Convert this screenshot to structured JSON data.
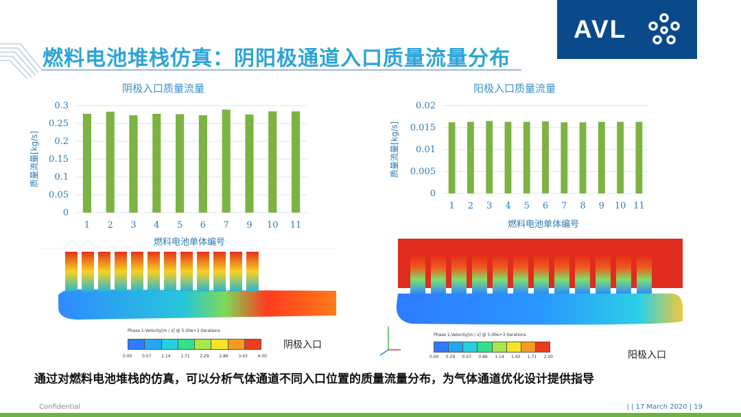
{
  "header": {
    "title": "燃料电池堆栈仿真：阴阳极通道入口质量流量分布",
    "logo_text": "AVL"
  },
  "chart_data": [
    {
      "type": "bar",
      "title": "阴极入口质量流量",
      "xlabel": "燃料电池单体编号",
      "ylabel": "质量流量[kg/s]",
      "categories": [
        "1",
        "2",
        "3",
        "4",
        "5",
        "6",
        "7",
        "9",
        "10",
        "11"
      ],
      "values": [
        0.277,
        0.283,
        0.273,
        0.277,
        0.276,
        0.273,
        0.289,
        0.275,
        0.284,
        0.284
      ],
      "yticks": [
        "0",
        "0.05",
        "0.1",
        "0.15",
        "0.2",
        "0.25",
        "0.3"
      ],
      "ylim": [
        0,
        0.3
      ],
      "grid": true,
      "color": "#7cb342"
    },
    {
      "type": "bar",
      "title": "阳极入口质量流量",
      "xlabel": "燃料电池单体编号",
      "ylabel": "质量流量[kg/s]",
      "categories": [
        "1",
        "2",
        "3",
        "4",
        "5",
        "6",
        "7",
        "8",
        "9",
        "10",
        "11"
      ],
      "values": [
        0.0162,
        0.0163,
        0.0165,
        0.0163,
        0.0163,
        0.0164,
        0.0162,
        0.0162,
        0.0163,
        0.0163,
        0.0163
      ],
      "yticks": [
        "0",
        "0.005",
        "0.01",
        "0.015",
        "0.02"
      ],
      "ylim": [
        0,
        0.02
      ],
      "grid": true,
      "color": "#7cb342"
    }
  ],
  "simulations": {
    "cathode": {
      "caption": "阴极入口",
      "legend_title": "Phase 1:Velocity[m / s] @ 5.00e+3 iterations",
      "legend_ticks": [
        "0.00",
        "0.57",
        "1.14",
        "1.71",
        "2.29",
        "2.86",
        "3.43",
        "4.00"
      ]
    },
    "anode": {
      "caption": "阳极入口",
      "legend_title": "Phase 1:Velocity[m / s] @ 5.00e+3 iterations",
      "legend_ticks": [
        "0.00",
        "0.29",
        "0.57",
        "0.86",
        "1.14",
        "1.43",
        "1.71",
        "2.00"
      ]
    }
  },
  "summary": "通过对燃料电池堆栈的仿真，可以分析气体通道不同入口位置的质量流量分布，为气体通道优化设计提供指导",
  "footer": {
    "left": "Confidential",
    "right": "|  | 17 March 2020 | 19"
  },
  "colors": {
    "title_blue": "#2aa4d8",
    "logo_bg": "#0a4a8a",
    "bar_green": "#7cb342",
    "footer_green": "#6cb33f"
  }
}
